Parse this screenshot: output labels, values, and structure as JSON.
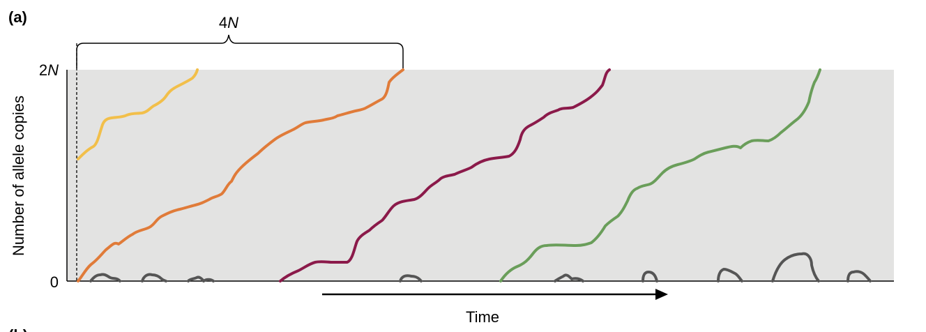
{
  "panel_label": "(a)",
  "bracket_label": {
    "prefix": "4",
    "italic": "N"
  },
  "y_axis": {
    "label": "Number of allele copies",
    "top_tick": {
      "prefix": "2",
      "italic": "N"
    },
    "bottom_tick": "0"
  },
  "x_axis": {
    "label": "Time"
  },
  "next_panel_label": "(b)",
  "colors": {
    "plot_background": "#e3e3e2",
    "fixed_1": "#f2bf4a",
    "fixed_2": "#e07b39",
    "fixed_3": "#8b1a4a",
    "fixed_4": "#6a9e5a",
    "lost": "#555555"
  },
  "trajectories": [
    {
      "name": "fixed-allele-yellow",
      "color_key": "fixed_1"
    },
    {
      "name": "fixed-allele-orange",
      "color_key": "fixed_2"
    },
    {
      "name": "fixed-allele-maroon",
      "color_key": "fixed_3"
    },
    {
      "name": "fixed-allele-green",
      "color_key": "fixed_4"
    },
    {
      "name": "lost-allele",
      "color_key": "lost",
      "count": 11
    }
  ]
}
